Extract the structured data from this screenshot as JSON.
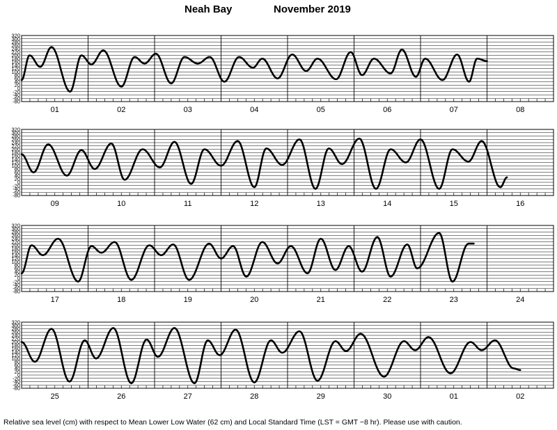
{
  "title": {
    "station": "Neah Bay",
    "month_year": "November   2019"
  },
  "footnote": "Relative sea level (cm) with respect to Mean Lower Low Water (62 cm) and Local Standard Time (LST = GMT −8 hr). Please use with caution.",
  "chart_data": {
    "type": "line",
    "ylabel": "",
    "xlabel": "",
    "ylim": [
      -80,
      320
    ],
    "yticks": [
      320,
      300,
      280,
      260,
      240,
      220,
      200,
      180,
      160,
      140,
      120,
      100,
      80,
      60,
      40,
      20,
      0,
      -20,
      -40,
      -60,
      -80
    ],
    "grid": true,
    "legend": "none",
    "line_color": "#000000",
    "panels": [
      {
        "days": [
          "01",
          "02",
          "03",
          "04",
          "05",
          "06",
          "07",
          "08"
        ],
        "extrema": [
          [
            0,
            50
          ],
          [
            0.12,
            200
          ],
          [
            0.28,
            130
          ],
          [
            0.45,
            250
          ],
          [
            0.73,
            -20
          ],
          [
            0.9,
            200
          ],
          [
            1.05,
            145
          ],
          [
            1.23,
            230
          ],
          [
            1.5,
            10
          ],
          [
            1.7,
            190
          ],
          [
            1.85,
            150
          ],
          [
            2.02,
            210
          ],
          [
            2.25,
            30
          ],
          [
            2.45,
            190
          ],
          [
            2.65,
            150
          ],
          [
            2.83,
            190
          ],
          [
            3.05,
            40
          ],
          [
            3.27,
            190
          ],
          [
            3.48,
            125
          ],
          [
            3.62,
            180
          ],
          [
            3.85,
            60
          ],
          [
            4.07,
            205
          ],
          [
            4.28,
            105
          ],
          [
            4.45,
            180
          ],
          [
            4.73,
            55
          ],
          [
            4.95,
            220
          ],
          [
            5.12,
            80
          ],
          [
            5.3,
            180
          ],
          [
            5.55,
            90
          ],
          [
            5.72,
            235
          ],
          [
            5.93,
            70
          ],
          [
            6.07,
            180
          ],
          [
            6.33,
            50
          ],
          [
            6.55,
            205
          ],
          [
            6.73,
            40
          ],
          [
            6.85,
            180
          ],
          [
            7.0,
            165
          ]
        ]
      },
      {
        "days": [
          "09",
          "10",
          "11",
          "12",
          "13",
          "14",
          "15",
          "16"
        ],
        "extrema": [
          [
            0,
            170
          ],
          [
            0.18,
            60
          ],
          [
            0.4,
            230
          ],
          [
            0.68,
            40
          ],
          [
            0.9,
            195
          ],
          [
            1.1,
            80
          ],
          [
            1.35,
            235
          ],
          [
            1.55,
            15
          ],
          [
            1.82,
            200
          ],
          [
            2.08,
            90
          ],
          [
            2.3,
            245
          ],
          [
            2.55,
            -10
          ],
          [
            2.75,
            200
          ],
          [
            3.0,
            100
          ],
          [
            3.25,
            250
          ],
          [
            3.5,
            -30
          ],
          [
            3.68,
            205
          ],
          [
            3.92,
            105
          ],
          [
            4.18,
            260
          ],
          [
            4.42,
            -40
          ],
          [
            4.62,
            205
          ],
          [
            4.82,
            110
          ],
          [
            5.08,
            265
          ],
          [
            5.33,
            -40
          ],
          [
            5.55,
            200
          ],
          [
            5.78,
            120
          ],
          [
            6.0,
            260
          ],
          [
            6.28,
            -40
          ],
          [
            6.48,
            200
          ],
          [
            6.72,
            125
          ],
          [
            6.92,
            250
          ],
          [
            7.2,
            -30
          ],
          [
            7.3,
            30
          ]
        ]
      },
      {
        "days": [
          "17",
          "18",
          "19",
          "20",
          "21",
          "22",
          "23",
          "24"
        ],
        "extrema": [
          [
            0,
            30
          ],
          [
            0.15,
            200
          ],
          [
            0.32,
            140
          ],
          [
            0.55,
            240
          ],
          [
            0.85,
            -20
          ],
          [
            1.05,
            195
          ],
          [
            1.2,
            155
          ],
          [
            1.4,
            220
          ],
          [
            1.65,
            -10
          ],
          [
            1.92,
            200
          ],
          [
            2.1,
            140
          ],
          [
            2.28,
            205
          ],
          [
            2.52,
            -10
          ],
          [
            2.82,
            210
          ],
          [
            3.0,
            120
          ],
          [
            3.18,
            195
          ],
          [
            3.38,
            10
          ],
          [
            3.62,
            220
          ],
          [
            3.85,
            90
          ],
          [
            4.05,
            195
          ],
          [
            4.3,
            30
          ],
          [
            4.5,
            240
          ],
          [
            4.72,
            50
          ],
          [
            4.92,
            195
          ],
          [
            5.12,
            40
          ],
          [
            5.35,
            250
          ],
          [
            5.55,
            10
          ],
          [
            5.8,
            205
          ],
          [
            5.95,
            60
          ],
          [
            6.28,
            275
          ],
          [
            6.48,
            -20
          ],
          [
            6.72,
            210
          ],
          [
            6.8,
            210
          ]
        ]
      },
      {
        "days": [
          "25",
          "26",
          "27",
          "28",
          "29",
          "30",
          "01",
          "02"
        ],
        "extrema": [
          [
            0,
            200
          ],
          [
            0.2,
            80
          ],
          [
            0.45,
            280
          ],
          [
            0.72,
            -40
          ],
          [
            0.95,
            210
          ],
          [
            1.12,
            100
          ],
          [
            1.38,
            285
          ],
          [
            1.65,
            -50
          ],
          [
            1.88,
            215
          ],
          [
            2.05,
            110
          ],
          [
            2.3,
            285
          ],
          [
            2.6,
            -50
          ],
          [
            2.8,
            210
          ],
          [
            2.98,
            120
          ],
          [
            3.22,
            275
          ],
          [
            3.5,
            -45
          ],
          [
            3.75,
            210
          ],
          [
            3.92,
            135
          ],
          [
            4.18,
            265
          ],
          [
            4.45,
            -35
          ],
          [
            4.72,
            205
          ],
          [
            4.88,
            145
          ],
          [
            5.1,
            250
          ],
          [
            5.45,
            -10
          ],
          [
            5.75,
            205
          ],
          [
            5.92,
            150
          ],
          [
            6.12,
            230
          ],
          [
            6.45,
            10
          ],
          [
            6.75,
            200
          ],
          [
            6.92,
            150
          ],
          [
            7.12,
            210
          ],
          [
            7.4,
            40
          ],
          [
            7.5,
            30
          ]
        ]
      }
    ]
  }
}
